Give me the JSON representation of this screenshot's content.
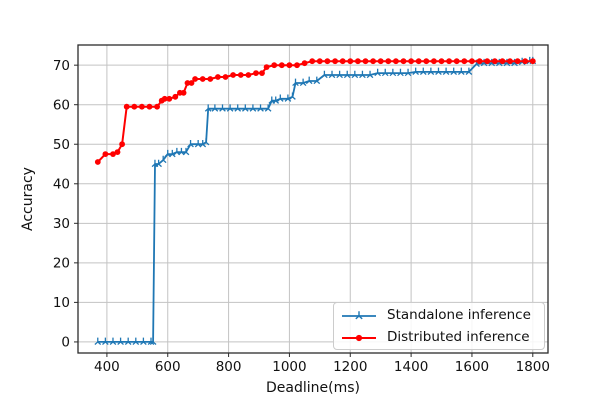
{
  "figure": {
    "background": "#ffffff",
    "grid_color": "#c3c3c3",
    "spine_color": "#2b2b2b",
    "tick_color": "#2b2b2b",
    "text_color": "#111111"
  },
  "chart_data": {
    "type": "line",
    "title": "",
    "xlabel": "Deadline(ms)",
    "ylabel": "Accuracy",
    "xlim": [
      305,
      1850
    ],
    "ylim": [
      -2.8,
      75.1
    ],
    "xticks": [
      400,
      600,
      800,
      1000,
      1200,
      1400,
      1600,
      1800
    ],
    "yticks": [
      0,
      10,
      20,
      30,
      40,
      50,
      60,
      70
    ],
    "grid": true,
    "legend_position": "lower right",
    "series": [
      {
        "name": "Standalone inference",
        "color": "#1f77b4",
        "marker": "tri-up",
        "line_width": 1.8,
        "x": [
          370,
          395,
          420,
          445,
          470,
          495,
          520,
          545,
          552,
          558,
          570,
          585,
          600,
          615,
          630,
          645,
          660,
          675,
          700,
          715,
          726,
          733,
          755,
          780,
          805,
          830,
          855,
          880,
          905,
          930,
          942,
          955,
          970,
          995,
          1010,
          1020,
          1045,
          1065,
          1090,
          1115,
          1140,
          1165,
          1190,
          1215,
          1240,
          1265,
          1290,
          1315,
          1340,
          1365,
          1390,
          1415,
          1440,
          1465,
          1490,
          1515,
          1540,
          1565,
          1590,
          1615,
          1640,
          1665,
          1690,
          1715,
          1740,
          1765,
          1790,
          1800
        ],
        "y": [
          0,
          0,
          0,
          0,
          0,
          0,
          0,
          0,
          0,
          45,
          45,
          46,
          47.5,
          47.5,
          48,
          48,
          48,
          50,
          50,
          50,
          50.5,
          59,
          59,
          59,
          59,
          59,
          59,
          59,
          59,
          59,
          61,
          61,
          61.5,
          61.5,
          62,
          65.5,
          65.5,
          66,
          66,
          67.5,
          67.5,
          67.5,
          67.5,
          67.5,
          67.5,
          67.5,
          68,
          68,
          68,
          68,
          68,
          68.3,
          68.3,
          68.3,
          68.3,
          68.3,
          68.3,
          68.3,
          68.3,
          70.3,
          70.5,
          70.5,
          70.5,
          70.5,
          70.5,
          70.8,
          71,
          71
        ]
      },
      {
        "name": "Distributed inference",
        "color": "#ff0000",
        "marker": "circle",
        "line_width": 2,
        "x": [
          370,
          395,
          420,
          435,
          450,
          465,
          490,
          515,
          540,
          565,
          580,
          590,
          605,
          625,
          640,
          652,
          665,
          678,
          690,
          715,
          740,
          765,
          790,
          815,
          840,
          865,
          890,
          910,
          925,
          950,
          975,
          1000,
          1025,
          1050,
          1075,
          1100,
          1125,
          1150,
          1175,
          1200,
          1225,
          1250,
          1275,
          1300,
          1325,
          1350,
          1375,
          1400,
          1425,
          1450,
          1475,
          1500,
          1525,
          1550,
          1575,
          1600,
          1625,
          1650,
          1675,
          1700,
          1725,
          1750,
          1775,
          1800
        ],
        "y": [
          45.5,
          47.5,
          47.5,
          48,
          50,
          59.5,
          59.5,
          59.5,
          59.5,
          59.5,
          61,
          61.5,
          61.5,
          62,
          63,
          63,
          65.5,
          65.5,
          66.5,
          66.5,
          66.5,
          67,
          67,
          67.5,
          67.5,
          67.5,
          68,
          68,
          69.5,
          70,
          70,
          70,
          70,
          70.5,
          71,
          71,
          71,
          71,
          71,
          71,
          71,
          71,
          71,
          71,
          71,
          71,
          71,
          71,
          71,
          71,
          71,
          71,
          71,
          71,
          71,
          71,
          71,
          71,
          71,
          71,
          71,
          71,
          71,
          71
        ]
      }
    ]
  }
}
